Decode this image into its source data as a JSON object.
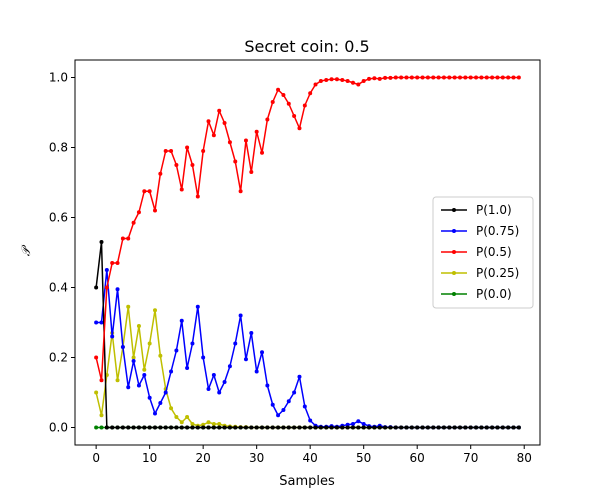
{
  "chart_data": {
    "type": "line",
    "title": "Secret coin: 0.5",
    "xlabel": "Samples",
    "ylabel": "𝒫",
    "xlim": [
      -3.95,
      82.95
    ],
    "ylim": [
      -0.05,
      1.05
    ],
    "xticks": [
      0,
      10,
      20,
      30,
      40,
      50,
      60,
      70,
      80
    ],
    "yticks": [
      0.0,
      0.2,
      0.4,
      0.6,
      0.8,
      1.0
    ],
    "xtick_labels": [
      "0",
      "10",
      "20",
      "30",
      "40",
      "50",
      "60",
      "70",
      "80"
    ],
    "ytick_labels": [
      "0.0",
      "0.2",
      "0.4",
      "0.6",
      "0.8",
      "1.0"
    ],
    "grid": false,
    "legend_position": "center-right",
    "x": [
      0,
      1,
      2,
      3,
      4,
      5,
      6,
      7,
      8,
      9,
      10,
      11,
      12,
      13,
      14,
      15,
      16,
      17,
      18,
      19,
      20,
      21,
      22,
      23,
      24,
      25,
      26,
      27,
      28,
      29,
      30,
      31,
      32,
      33,
      34,
      35,
      36,
      37,
      38,
      39,
      40,
      41,
      42,
      43,
      44,
      45,
      46,
      47,
      48,
      49,
      50,
      51,
      52,
      53,
      54,
      55,
      56,
      57,
      58,
      59,
      60,
      61,
      62,
      63,
      64,
      65,
      66,
      67,
      68,
      69,
      70,
      71,
      72,
      73,
      74,
      75,
      76,
      77,
      78,
      79
    ],
    "series": [
      {
        "name": "P(1.0)",
        "color": "#000000",
        "values": [
          0.4,
          0.53,
          0.0,
          0,
          0,
          0,
          0,
          0,
          0,
          0,
          0,
          0,
          0,
          0,
          0,
          0,
          0,
          0,
          0,
          0,
          0,
          0,
          0,
          0,
          0,
          0,
          0,
          0,
          0,
          0,
          0,
          0,
          0,
          0,
          0,
          0,
          0,
          0,
          0,
          0,
          0,
          0,
          0,
          0,
          0,
          0,
          0,
          0,
          0,
          0,
          0,
          0,
          0,
          0,
          0,
          0,
          0,
          0,
          0,
          0,
          0,
          0,
          0,
          0,
          0,
          0,
          0,
          0,
          0,
          0,
          0,
          0,
          0,
          0,
          0,
          0,
          0,
          0,
          0,
          0
        ]
      },
      {
        "name": "P(0.75)",
        "color": "#0000ff",
        "values": [
          0.3,
          0.3,
          0.45,
          0.26,
          0.395,
          0.23,
          0.115,
          0.19,
          0.12,
          0.15,
          0.085,
          0.04,
          0.07,
          0.1,
          0.16,
          0.22,
          0.305,
          0.17,
          0.24,
          0.345,
          0.2,
          0.11,
          0.15,
          0.1,
          0.13,
          0.175,
          0.24,
          0.32,
          0.195,
          0.27,
          0.16,
          0.215,
          0.12,
          0.065,
          0.035,
          0.05,
          0.075,
          0.1,
          0.145,
          0.06,
          0.02,
          0.005,
          0.002,
          0.002,
          0.004,
          0.002,
          0.005,
          0.008,
          0.01,
          0.018,
          0.01,
          0.004,
          0.002,
          0.005,
          0.001,
          0.001,
          0,
          0,
          0,
          0,
          0,
          0,
          0,
          0,
          0,
          0,
          0,
          0,
          0,
          0,
          0,
          0,
          0,
          0,
          0,
          0,
          0,
          0,
          0,
          0
        ]
      },
      {
        "name": "P(0.5)",
        "color": "#ff0000",
        "values": [
          0.2,
          0.135,
          0.4,
          0.47,
          0.47,
          0.54,
          0.54,
          0.585,
          0.615,
          0.675,
          0.675,
          0.62,
          0.725,
          0.79,
          0.79,
          0.75,
          0.68,
          0.8,
          0.75,
          0.66,
          0.79,
          0.875,
          0.835,
          0.905,
          0.87,
          0.815,
          0.76,
          0.675,
          0.82,
          0.73,
          0.845,
          0.785,
          0.88,
          0.93,
          0.965,
          0.95,
          0.925,
          0.89,
          0.855,
          0.92,
          0.955,
          0.98,
          0.99,
          0.993,
          0.995,
          0.995,
          0.993,
          0.99,
          0.985,
          0.98,
          0.99,
          0.996,
          0.998,
          0.996,
          0.999,
          0.999,
          1.0,
          1.0,
          1.0,
          1.0,
          1.0,
          1.0,
          1.0,
          1.0,
          1.0,
          1.0,
          1.0,
          1.0,
          1.0,
          1.0,
          1.0,
          1.0,
          1.0,
          1.0,
          1.0,
          1.0,
          1.0,
          1.0,
          1.0,
          1.0
        ]
      },
      {
        "name": "P(0.25)",
        "color": "#bfbf00",
        "values": [
          0.1,
          0.035,
          0.15,
          0.27,
          0.135,
          0.23,
          0.345,
          0.2,
          0.29,
          0.165,
          0.24,
          0.335,
          0.205,
          0.11,
          0.055,
          0.03,
          0.015,
          0.03,
          0.01,
          0.005,
          0.008,
          0.015,
          0.01,
          0.01,
          0.005,
          0.003,
          0.002,
          0.001,
          0.001,
          0,
          0,
          0,
          0,
          0,
          0,
          0,
          0,
          0,
          0,
          0,
          0,
          0,
          0,
          0,
          0,
          0,
          0,
          0,
          0,
          0,
          0,
          0,
          0,
          0,
          0,
          0,
          0,
          0,
          0,
          0,
          0,
          0,
          0,
          0,
          0,
          0,
          0,
          0,
          0,
          0,
          0,
          0,
          0,
          0,
          0,
          0,
          0,
          0,
          0,
          0
        ]
      },
      {
        "name": "P(0.0)",
        "color": "#008000",
        "values": [
          0,
          0,
          0,
          0,
          0,
          0,
          0,
          0,
          0,
          0,
          0,
          0,
          0,
          0,
          0,
          0,
          0,
          0,
          0,
          0,
          0,
          0,
          0,
          0,
          0,
          0,
          0,
          0,
          0,
          0,
          0,
          0,
          0,
          0,
          0,
          0,
          0,
          0,
          0,
          0,
          0,
          0,
          0,
          0,
          0,
          0,
          0,
          0,
          0,
          0,
          0,
          0,
          0,
          0,
          0,
          0,
          0,
          0,
          0,
          0,
          0,
          0,
          0,
          0,
          0,
          0,
          0,
          0,
          0,
          0,
          0,
          0,
          0,
          0,
          0,
          0,
          0,
          0,
          0,
          0
        ]
      }
    ]
  }
}
